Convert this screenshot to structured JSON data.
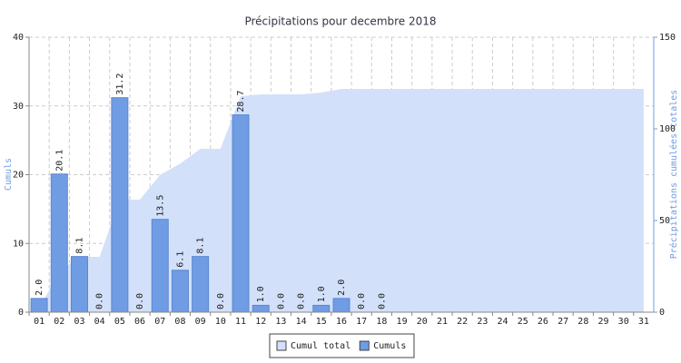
{
  "chart_data": {
    "type": "bar",
    "title": "Précipitations pour decembre 2018",
    "ylabel": "Cumuls",
    "y2label": "Précipitations cumulées totales",
    "categories": [
      "01",
      "02",
      "03",
      "04",
      "05",
      "06",
      "07",
      "08",
      "09",
      "10",
      "11",
      "12",
      "13",
      "14",
      "15",
      "16",
      "17",
      "18",
      "19",
      "20",
      "21",
      "22",
      "23",
      "24",
      "25",
      "26",
      "27",
      "28",
      "29",
      "30",
      "31"
    ],
    "series": [
      {
        "name": "Cumul total",
        "type": "area",
        "axis": "y2",
        "color": "#d3e0fa",
        "values": [
          2,
          22.1,
          30.2,
          30.2,
          61.4,
          61.4,
          74.9,
          81,
          89.1,
          89.1,
          117.8,
          118.8,
          118.8,
          118.8,
          119.8,
          121.8,
          121.8,
          121.8,
          121.8,
          121.8,
          121.8,
          121.8,
          121.8,
          121.8,
          121.8,
          121.8,
          121.8,
          121.8,
          121.8,
          121.8,
          121.8
        ]
      },
      {
        "name": "Cumuls",
        "type": "bar",
        "color": "#6f9ce2",
        "values": [
          2,
          20.1,
          8.1,
          0,
          31.2,
          0,
          13.5,
          6.1,
          8.1,
          0,
          28.7,
          1,
          0,
          0,
          1,
          2,
          0,
          0,
          null,
          null,
          null,
          null,
          null,
          null,
          null,
          null,
          null,
          null,
          null,
          null,
          null
        ],
        "value_labels": [
          "2.0",
          "20.1",
          "8.1",
          "0.0",
          "31.2",
          "0.0",
          "13.5",
          "6.1",
          "8.1",
          "0.0",
          "28.7",
          "1.0",
          "0.0",
          "0.0",
          "1.0",
          "2.0",
          "0.0",
          "0.0",
          null,
          null,
          null,
          null,
          null,
          null,
          null,
          null,
          null,
          null,
          null,
          null,
          null
        ]
      }
    ],
    "ylim": [
      0,
      40
    ],
    "yticks": [
      0,
      10,
      20,
      30,
      40
    ],
    "y2lim": [
      0,
      150
    ],
    "y2ticks": [
      0,
      50,
      100,
      150
    ],
    "grid": true,
    "legend": "bottom"
  }
}
